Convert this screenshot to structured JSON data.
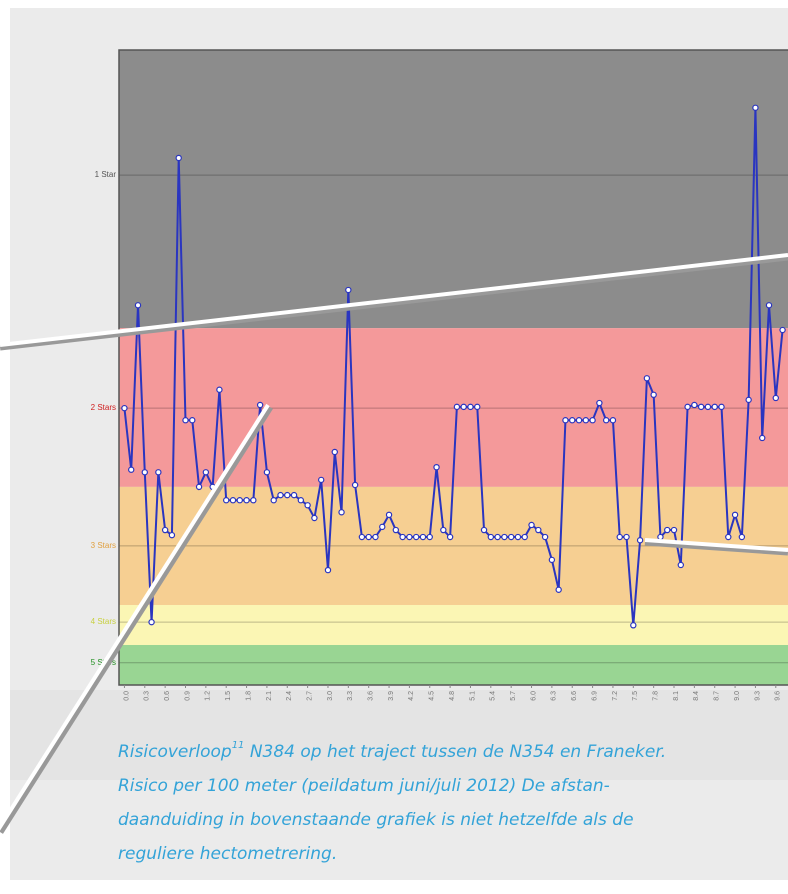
{
  "chart_data": {
    "type": "line",
    "x": [
      0,
      0.1,
      0.2,
      0.3,
      0.4,
      0.5,
      0.6,
      0.7,
      0.8,
      0.9,
      1,
      1.1,
      1.2,
      1.3,
      1.4,
      1.5,
      1.6,
      1.7,
      1.8,
      1.9,
      2,
      2.1,
      2.2,
      2.3,
      2.4,
      2.5,
      2.6,
      2.7,
      2.8,
      2.9,
      3,
      3.1,
      3.2,
      3.3,
      3.4,
      3.5,
      3.6,
      3.7,
      3.8,
      3.9,
      4,
      4.1,
      4.2,
      4.3,
      4.4,
      4.5,
      4.6,
      4.7,
      4.8,
      4.9,
      5,
      5.1,
      5.2,
      5.3,
      5.4,
      5.5,
      5.6,
      5.7,
      5.8,
      5.9,
      6,
      6.1,
      6.2,
      6.3,
      6.4,
      6.5,
      6.6,
      6.7,
      6.8,
      6.9,
      7,
      7.1,
      7.2,
      7.3,
      7.4,
      7.5,
      7.6,
      7.7,
      7.8,
      7.9,
      8,
      8.1,
      8.2,
      8.3,
      8.4,
      8.5,
      8.6,
      8.7,
      8.8,
      8.9,
      9,
      9.1,
      9.2,
      9.3,
      9.4,
      9.5,
      9.6,
      9.7
    ],
    "series": [
      {
        "color": "#2a35c0",
        "values": [
          43.6,
          33.9,
          59.8,
          33.5,
          9.9,
          33.5,
          24.4,
          23.6,
          83.0,
          41.7,
          41.7,
          31.2,
          33.5,
          31.2,
          46.5,
          29.1,
          29.1,
          29.1,
          29.1,
          29.1,
          44.1,
          33.5,
          29.1,
          29.9,
          29.9,
          29.9,
          29.1,
          28.3,
          26.3,
          32.3,
          18.1,
          36.7,
          27.2,
          62.2,
          31.5,
          23.3,
          23.3,
          23.3,
          24.9,
          26.8,
          24.4,
          23.3,
          23.3,
          23.3,
          23.3,
          23.3,
          34.3,
          24.4,
          23.3,
          43.8,
          43.8,
          43.8,
          43.8,
          24.4,
          23.3,
          23.3,
          23.3,
          23.3,
          23.3,
          23.3,
          25.2,
          24.4,
          23.3,
          19.7,
          15.0,
          41.7,
          41.7,
          41.7,
          41.7,
          41.7,
          44.4,
          41.7,
          41.7,
          23.3,
          23.3,
          9.4,
          22.8,
          48.3,
          45.7,
          23.3,
          24.4,
          24.4,
          18.9,
          43.8,
          44.1,
          43.8,
          43.8,
          43.8,
          43.8,
          23.3,
          26.8,
          23.3,
          44.9,
          90.9,
          38.9,
          59.8,
          45.2,
          55.9
        ]
      }
    ],
    "xlim": [
      -0.08,
      9.78
    ],
    "ylim": [
      0,
      100
    ],
    "yticks": [
      {
        "value": 80.3,
        "label": "1 Star",
        "color": "#555555"
      },
      {
        "value": 43.6,
        "label": "2 Stars",
        "color": "#d02020"
      },
      {
        "value": 21.9,
        "label": "3 Stars",
        "color": "#e0a040"
      },
      {
        "value": 9.9,
        "label": "4 Stars",
        "color": "#c8d040"
      },
      {
        "value": 3.5,
        "label": "5 Stars",
        "color": "#209020"
      }
    ],
    "xticks": [
      {
        "value": 0,
        "label": "0.0"
      },
      {
        "value": 0.3,
        "label": "0.3"
      },
      {
        "value": 0.6,
        "label": "0.6"
      },
      {
        "value": 0.9,
        "label": "0.9"
      },
      {
        "value": 1.2,
        "label": "1.2"
      },
      {
        "value": 1.5,
        "label": "1.5"
      },
      {
        "value": 1.8,
        "label": "1.8"
      },
      {
        "value": 2.1,
        "label": "2.1"
      },
      {
        "value": 2.4,
        "label": "2.4"
      },
      {
        "value": 2.7,
        "label": "2.7"
      },
      {
        "value": 3,
        "label": "3.0"
      },
      {
        "value": 3.3,
        "label": "3.3"
      },
      {
        "value": 3.6,
        "label": "3.6"
      },
      {
        "value": 3.9,
        "label": "3.9"
      },
      {
        "value": 4.2,
        "label": "4.2"
      },
      {
        "value": 4.5,
        "label": "4.5"
      },
      {
        "value": 4.8,
        "label": "4.8"
      },
      {
        "value": 5.1,
        "label": "5.1"
      },
      {
        "value": 5.4,
        "label": "5.4"
      },
      {
        "value": 5.7,
        "label": "5.7"
      },
      {
        "value": 6,
        "label": "6.0"
      },
      {
        "value": 6.3,
        "label": "6.3"
      },
      {
        "value": 6.6,
        "label": "6.6"
      },
      {
        "value": 6.9,
        "label": "6.9"
      },
      {
        "value": 7.2,
        "label": "7.2"
      },
      {
        "value": 7.5,
        "label": "7.5"
      },
      {
        "value": 7.8,
        "label": "7.8"
      },
      {
        "value": 8.1,
        "label": "8.1"
      },
      {
        "value": 8.4,
        "label": "8.4"
      },
      {
        "value": 8.7,
        "label": "8.7"
      },
      {
        "value": 9,
        "label": "9.0"
      },
      {
        "value": 9.3,
        "label": "9.3"
      },
      {
        "value": 9.6,
        "label": "9.6"
      }
    ],
    "bands": [
      {
        "from": 56.2,
        "to": 100,
        "color": "#8c8c8c"
      },
      {
        "from": 31.2,
        "to": 56.2,
        "color": "#f4999a"
      },
      {
        "from": 12.6,
        "to": 31.2,
        "color": "#f6cf92"
      },
      {
        "from": 6.3,
        "to": 12.6,
        "color": "#fbf6b4"
      },
      {
        "from": 0,
        "to": 6.3,
        "color": "#99d593"
      }
    ],
    "grid": true
  },
  "caption": {
    "lead": "Risicoverloop",
    "footnote": "11",
    "lines": [
      " N384 op het traject tussen de N354 en Franeker.",
      "Risico per 100 meter (peildatum juni/juli 2012) De afstan-",
      "daanduiding in bovenstaande grafiek  is niet hetzelfde als de",
      "reguliere hectometrering."
    ]
  }
}
